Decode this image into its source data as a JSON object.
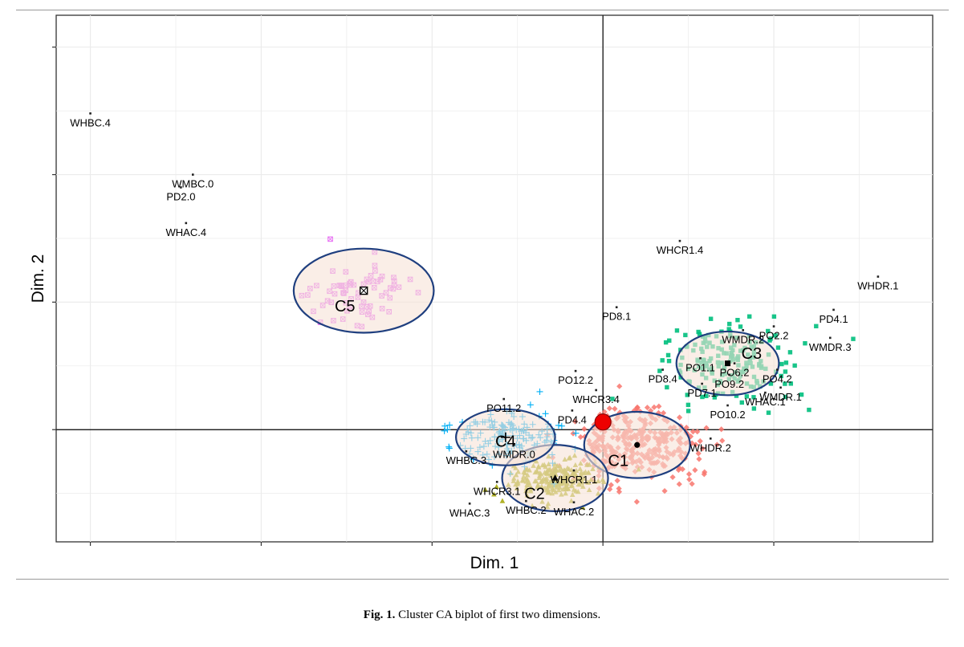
{
  "caption": {
    "label": "Fig. 1.",
    "text": "Cluster CA biplot of first two dimensions."
  },
  "chart_data": {
    "type": "scatter",
    "title": "",
    "xlabel": "Dim. 1",
    "ylabel": "Dim. 2",
    "xlim": [
      -3.2,
      1.93
    ],
    "ylim": [
      -0.88,
      3.25
    ],
    "xticks": [
      -3,
      -2,
      -1,
      0,
      1
    ],
    "yticks": [
      0,
      1,
      2,
      3
    ],
    "grid": true,
    "origin_point": [
      0,
      0.06
    ],
    "colors": {
      "C1": "#f8766d",
      "C2": "#a3a500",
      "C3": "#00bf7d",
      "C4": "#00b0f6",
      "C5": "#e76bf3",
      "ellipse": "#1f3f7f",
      "ellipse_fill": "#f7e3d7",
      "origin": "#ee0000"
    },
    "clusters": [
      {
        "name": "C1",
        "center": [
          0.2,
          -0.12
        ],
        "radii": [
          0.31,
          0.26
        ],
        "label_pos": [
          0.09,
          -0.24
        ],
        "marker": "diamond",
        "color": "#f8766d",
        "n": 320,
        "spread": [
          0.36,
          0.25
        ]
      },
      {
        "name": "C2",
        "center": [
          -0.28,
          -0.38
        ],
        "radii": [
          0.31,
          0.26
        ],
        "label_pos": [
          -0.4,
          -0.5
        ],
        "marker": "triangle",
        "color": "#a3a500",
        "n": 230,
        "spread": [
          0.22,
          0.15
        ]
      },
      {
        "name": "C3",
        "center": [
          0.73,
          0.52
        ],
        "radii": [
          0.3,
          0.25
        ],
        "label_pos": [
          0.87,
          0.6
        ],
        "marker": "square",
        "color": "#00bf7d",
        "n": 180,
        "spread": [
          0.38,
          0.28
        ]
      },
      {
        "name": "C4",
        "center": [
          -0.57,
          -0.06
        ],
        "radii": [
          0.29,
          0.22
        ],
        "label_pos": [
          -0.57,
          -0.09
        ],
        "marker": "plus",
        "color": "#00b0f6",
        "n": 150,
        "spread": [
          0.3,
          0.2
        ]
      },
      {
        "name": "C5",
        "center": [
          -1.4,
          1.09
        ],
        "radii": [
          0.41,
          0.33
        ],
        "label_pos": [
          -1.51,
          0.97
        ],
        "marker": "xsquare",
        "color": "#e76bf3",
        "n": 70,
        "spread": [
          0.28,
          0.22
        ]
      }
    ],
    "labeled_points": [
      {
        "label": "WHBC.4",
        "x": -3.0,
        "y": 2.48
      },
      {
        "label": "WMBC.0",
        "x": -2.4,
        "y": 2.0
      },
      {
        "label": "PD2.0",
        "x": -2.47,
        "y": 1.9
      },
      {
        "label": "WHAC.4",
        "x": -2.44,
        "y": 1.62
      },
      {
        "label": "WHCR1.4",
        "x": 0.45,
        "y": 1.48
      },
      {
        "label": "WHDR.1",
        "x": 1.61,
        "y": 1.2
      },
      {
        "label": "PD8.1",
        "x": 0.08,
        "y": 0.96
      },
      {
        "label": "PD4.1",
        "x": 1.35,
        "y": 0.94
      },
      {
        "label": "WMDR.2",
        "x": 0.82,
        "y": 0.78
      },
      {
        "label": "PO2.2",
        "x": 1.0,
        "y": 0.81
      },
      {
        "label": "WMDR.3",
        "x": 1.33,
        "y": 0.72
      },
      {
        "label": "PO1.1",
        "x": 0.57,
        "y": 0.56
      },
      {
        "label": "PO6.2",
        "x": 0.77,
        "y": 0.52
      },
      {
        "label": "PO4.2",
        "x": 1.02,
        "y": 0.47
      },
      {
        "label": "PD8.4",
        "x": 0.35,
        "y": 0.47
      },
      {
        "label": "PO9.2",
        "x": 0.74,
        "y": 0.43
      },
      {
        "label": "PD7.1",
        "x": 0.58,
        "y": 0.36
      },
      {
        "label": "WMDR.1",
        "x": 1.04,
        "y": 0.33
      },
      {
        "label": "PO10.2",
        "x": 0.73,
        "y": 0.19
      },
      {
        "label": "WHAC.1",
        "x": 0.95,
        "y": 0.29
      },
      {
        "label": "PO12.2",
        "x": -0.16,
        "y": 0.46
      },
      {
        "label": "WHCR3.4",
        "x": -0.04,
        "y": 0.31
      },
      {
        "label": "PO11.2",
        "x": -0.58,
        "y": 0.24
      },
      {
        "label": "PD4.4",
        "x": -0.18,
        "y": 0.15
      },
      {
        "label": "WHDR.2",
        "x": 0.63,
        "y": -0.07
      },
      {
        "label": "WMDR.0",
        "x": -0.52,
        "y": -0.12
      },
      {
        "label": "WHBC.3",
        "x": -0.8,
        "y": -0.17
      },
      {
        "label": "WHCR1.1",
        "x": -0.17,
        "y": -0.32
      },
      {
        "label": "WHCR3.1",
        "x": -0.62,
        "y": -0.41
      },
      {
        "label": "WHBC.2",
        "x": -0.45,
        "y": -0.56
      },
      {
        "label": "WHAC.2",
        "x": -0.17,
        "y": -0.57
      },
      {
        "label": "WHAC.3",
        "x": -0.78,
        "y": -0.58
      }
    ]
  }
}
